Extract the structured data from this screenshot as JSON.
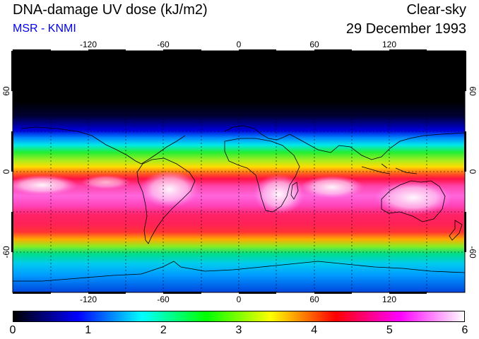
{
  "title": "DNA-damage UV dose (kJ/m2)",
  "subtitle": "MSR - KNMI",
  "subtitle_color": "#0000ee",
  "condition": "Clear-sky",
  "date": "29 December 1993",
  "map": {
    "lon_range": [
      -180,
      180
    ],
    "lat_range": [
      -90,
      90
    ],
    "lon_ticks": [
      "-120",
      "-60",
      "0",
      "60",
      "120"
    ],
    "lat_ticks_left": [
      "60",
      "0",
      "-60"
    ],
    "lat_ticks_right": [
      "60",
      "0",
      "-60"
    ]
  },
  "colorbar": {
    "min": 0,
    "max": 6,
    "ticks": [
      "0",
      "1",
      "2",
      "3",
      "4",
      "5",
      "6"
    ],
    "colors": [
      "#000000",
      "#0000ff",
      "#00ffff",
      "#00ff00",
      "#ffff00",
      "#ff0000",
      "#ff00ff",
      "#ffffff"
    ]
  }
}
